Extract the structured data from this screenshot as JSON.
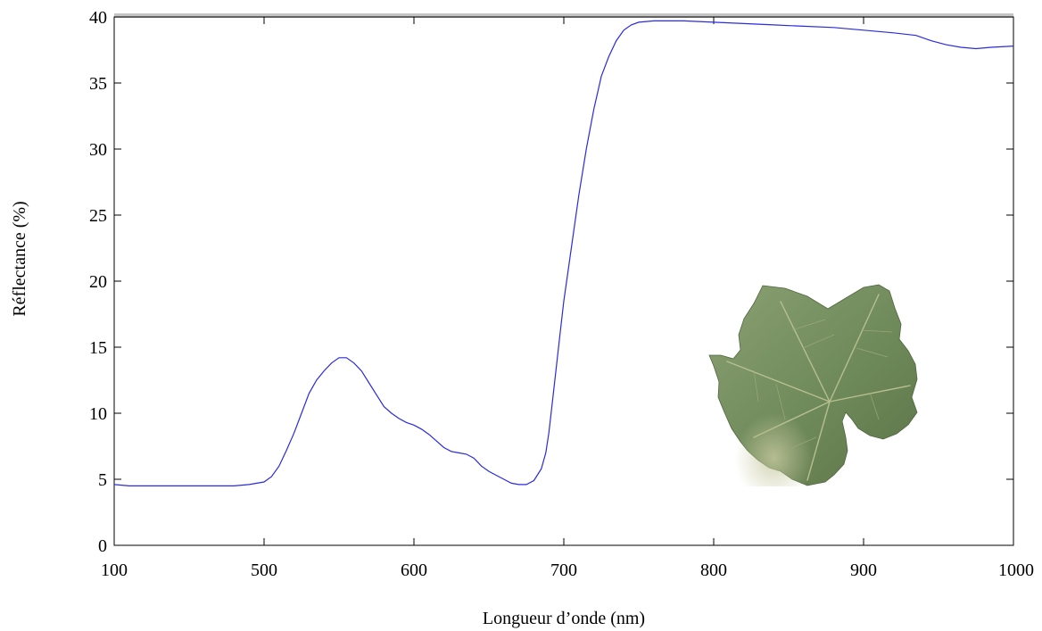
{
  "chart_data": {
    "type": "line",
    "title": "",
    "xlabel": "Longueur d’onde (nm)",
    "ylabel": "Réflectance (%)",
    "x_ticks": [
      "100",
      "500",
      "600",
      "700",
      "800",
      "900",
      "1000"
    ],
    "y_ticks": [
      "0",
      "5",
      "10",
      "15",
      "20",
      "25",
      "30",
      "35",
      "40"
    ],
    "ylim": [
      0,
      40
    ],
    "grid": false,
    "legend": "none",
    "line_color": "#2a2ae0",
    "series": [
      {
        "points": [
          [
            400,
            4.6
          ],
          [
            410,
            4.5
          ],
          [
            420,
            4.5
          ],
          [
            430,
            4.5
          ],
          [
            440,
            4.5
          ],
          [
            450,
            4.5
          ],
          [
            460,
            4.5
          ],
          [
            470,
            4.5
          ],
          [
            480,
            4.5
          ],
          [
            490,
            4.6
          ],
          [
            500,
            4.8
          ],
          [
            505,
            5.2
          ],
          [
            510,
            6.0
          ],
          [
            515,
            7.2
          ],
          [
            520,
            8.5
          ],
          [
            525,
            10.0
          ],
          [
            530,
            11.5
          ],
          [
            535,
            12.5
          ],
          [
            540,
            13.2
          ],
          [
            545,
            13.8
          ],
          [
            550,
            14.2
          ],
          [
            555,
            14.2
          ],
          [
            560,
            13.8
          ],
          [
            565,
            13.2
          ],
          [
            570,
            12.3
          ],
          [
            575,
            11.4
          ],
          [
            580,
            10.5
          ],
          [
            585,
            10.0
          ],
          [
            590,
            9.6
          ],
          [
            595,
            9.3
          ],
          [
            600,
            9.1
          ],
          [
            605,
            8.8
          ],
          [
            610,
            8.4
          ],
          [
            615,
            7.9
          ],
          [
            620,
            7.4
          ],
          [
            625,
            7.1
          ],
          [
            630,
            7.0
          ],
          [
            635,
            6.9
          ],
          [
            640,
            6.6
          ],
          [
            645,
            6.0
          ],
          [
            650,
            5.6
          ],
          [
            655,
            5.3
          ],
          [
            660,
            5.0
          ],
          [
            665,
            4.7
          ],
          [
            670,
            4.6
          ],
          [
            675,
            4.6
          ],
          [
            680,
            4.9
          ],
          [
            685,
            5.8
          ],
          [
            688,
            7.0
          ],
          [
            690,
            8.5
          ],
          [
            692,
            10.5
          ],
          [
            695,
            13.5
          ],
          [
            698,
            16.5
          ],
          [
            700,
            18.5
          ],
          [
            705,
            22.5
          ],
          [
            710,
            26.5
          ],
          [
            715,
            30.0
          ],
          [
            720,
            33.0
          ],
          [
            725,
            35.5
          ],
          [
            730,
            37.0
          ],
          [
            735,
            38.2
          ],
          [
            740,
            39.0
          ],
          [
            745,
            39.4
          ],
          [
            750,
            39.6
          ],
          [
            760,
            39.7
          ],
          [
            780,
            39.7
          ],
          [
            800,
            39.6
          ],
          [
            820,
            39.5
          ],
          [
            840,
            39.4
          ],
          [
            860,
            39.3
          ],
          [
            880,
            39.2
          ],
          [
            900,
            39.0
          ],
          [
            920,
            38.8
          ],
          [
            935,
            38.6
          ],
          [
            945,
            38.2
          ],
          [
            955,
            37.9
          ],
          [
            965,
            37.7
          ],
          [
            975,
            37.6
          ],
          [
            985,
            37.7
          ],
          [
            1000,
            37.8
          ]
        ]
      }
    ]
  }
}
